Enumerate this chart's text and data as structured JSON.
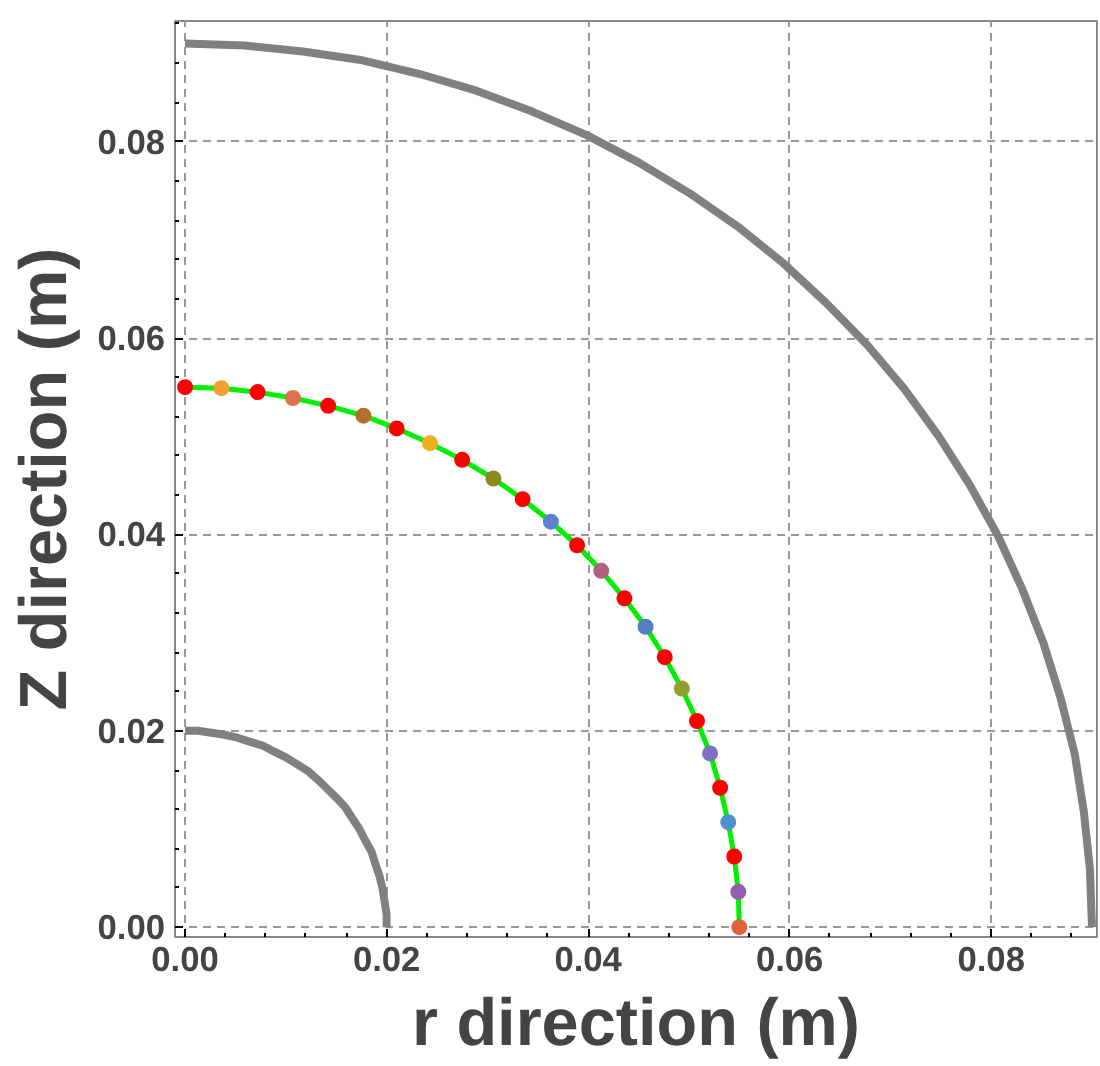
{
  "chart_data": {
    "type": "line",
    "xlabel": "r direction (m)",
    "ylabel": "Z direction (m)",
    "xlim": [
      -0.001,
      0.0905
    ],
    "ylim": [
      -0.001,
      0.0923
    ],
    "xticks": [
      {
        "value": 0,
        "label": "0.00"
      },
      {
        "value": 0.02,
        "label": "0.02"
      },
      {
        "value": 0.04,
        "label": "0.04"
      },
      {
        "value": 0.06,
        "label": "0.06"
      },
      {
        "value": 0.08,
        "label": "0.08"
      }
    ],
    "yticks": [
      {
        "value": 0,
        "label": "0.00"
      },
      {
        "value": 0.02,
        "label": "0.02"
      },
      {
        "value": 0.04,
        "label": "0.04"
      },
      {
        "value": 0.06,
        "label": "0.06"
      },
      {
        "value": 0.08,
        "label": "0.08"
      }
    ],
    "grid": true,
    "series": [
      {
        "color": "#808080",
        "marker": "none",
        "x": [
          0,
          0.0013,
          0.0026,
          0.0039,
          0.0052,
          0.0064,
          0.0077,
          0.0088,
          0.01,
          0.0111,
          0.0122,
          0.0132,
          0.0141,
          0.015,
          0.0159,
          0.0166,
          0.0173,
          0.0179,
          0.0185,
          0.0189,
          0.0193,
          0.0196,
          0.0198,
          0.02,
          0.02
        ],
        "values": [
          0.02,
          0.02,
          0.0198,
          0.0196,
          0.0193,
          0.0189,
          0.0185,
          0.0179,
          0.0173,
          0.0166,
          0.0159,
          0.015,
          0.0141,
          0.0132,
          0.0122,
          0.0111,
          0.01,
          0.0088,
          0.0077,
          0.0064,
          0.0052,
          0.0039,
          0.0026,
          0.0013,
          0
        ]
      },
      {
        "color": "#808080",
        "marker": "none",
        "x": [
          0,
          0.0059,
          0.0117,
          0.0176,
          0.0233,
          0.0289,
          0.0344,
          0.0398,
          0.045,
          0.05,
          0.0548,
          0.0593,
          0.0636,
          0.0677,
          0.0714,
          0.0748,
          0.0779,
          0.0807,
          0.0831,
          0.0852,
          0.0869,
          0.0883,
          0.0892,
          0.0898,
          0.09
        ],
        "values": [
          0.09,
          0.0898,
          0.0892,
          0.0883,
          0.0869,
          0.0852,
          0.0831,
          0.0807,
          0.0779,
          0.0748,
          0.0714,
          0.0677,
          0.0636,
          0.0593,
          0.0548,
          0.05,
          0.045,
          0.0398,
          0.0344,
          0.0289,
          0.0233,
          0.0176,
          0.0117,
          0.0059,
          0
        ]
      },
      {
        "color": "#00ee00",
        "marker": "circle",
        "x": [
          0,
          0.0036,
          0.0072,
          0.0107,
          0.0142,
          0.0177,
          0.021,
          0.0243,
          0.0275,
          0.0306,
          0.0335,
          0.0363,
          0.0389,
          0.0413,
          0.0436,
          0.0457,
          0.0476,
          0.0493,
          0.0508,
          0.0521,
          0.0531,
          0.0539,
          0.0545,
          0.0549,
          0.055
        ],
        "values": [
          0.055,
          0.0549,
          0.0545,
          0.0539,
          0.0531,
          0.0521,
          0.0508,
          0.0493,
          0.0476,
          0.0457,
          0.0436,
          0.0413,
          0.0389,
          0.0363,
          0.0335,
          0.0306,
          0.0275,
          0.0243,
          0.021,
          0.0177,
          0.0142,
          0.0107,
          0.0072,
          0.0036,
          0
        ],
        "colors": [
          "#ff0000",
          "#f0a030",
          "#ff0000",
          "#e07050",
          "#ff0000",
          "#b07030",
          "#ff0000",
          "#f0b020",
          "#ff0000",
          "#8a8a20",
          "#ff0000",
          "#6080d0",
          "#ff0000",
          "#b06080",
          "#ff0000",
          "#5080c0",
          "#ff0000",
          "#90a030",
          "#ff0000",
          "#8070c0",
          "#ff0000",
          "#5090d0",
          "#ff0000",
          "#9060b0",
          "#e06040"
        ]
      }
    ]
  }
}
